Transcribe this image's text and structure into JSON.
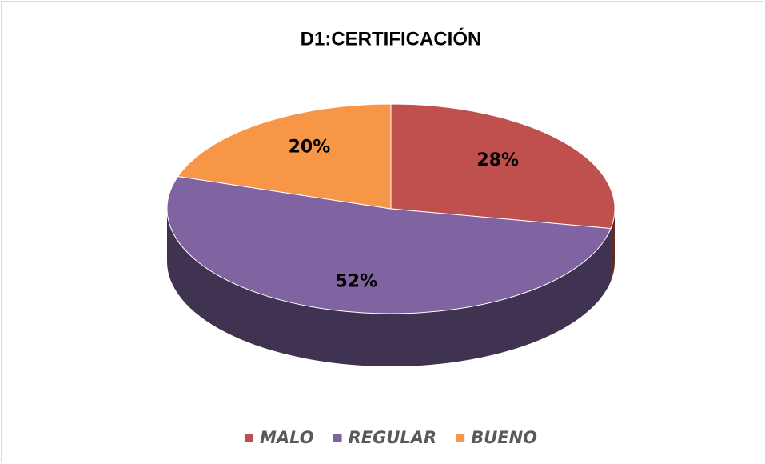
{
  "chart_data": {
    "type": "pie",
    "title": "D1:CERTIFICACIÓN",
    "categories": [
      "MALO",
      "REGULAR",
      "BUENO"
    ],
    "values": [
      28,
      52,
      20
    ],
    "value_labels": [
      "28%",
      "52%",
      "20%"
    ],
    "colors": [
      "#c0504d",
      "#8064a2",
      "#f79646"
    ],
    "legend": "bottom"
  }
}
